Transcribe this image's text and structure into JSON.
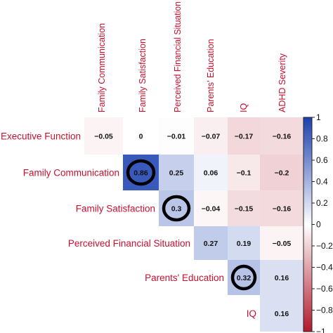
{
  "chart_data": {
    "type": "heatmap",
    "title": "",
    "columns": [
      "Family Communication",
      "Family Satisfaction",
      "Perceived Financial Situation",
      "Parents' Education",
      "IQ",
      "ADHD Severity"
    ],
    "rows": [
      "Executive Function",
      "Family Communication",
      "Family Satisfaction",
      "Perceived Financial Situation",
      "Parents' Education",
      "IQ"
    ],
    "layout": "upper-triangle",
    "cells": [
      {
        "row": 0,
        "col": 0,
        "value": -0.05,
        "label": "−0.05"
      },
      {
        "row": 0,
        "col": 1,
        "value": 0,
        "label": "0"
      },
      {
        "row": 0,
        "col": 2,
        "value": -0.01,
        "label": "−0.01"
      },
      {
        "row": 0,
        "col": 3,
        "value": -0.07,
        "label": "−0.07"
      },
      {
        "row": 0,
        "col": 4,
        "value": -0.17,
        "label": "−0.17"
      },
      {
        "row": 0,
        "col": 5,
        "value": -0.16,
        "label": "−0.16"
      },
      {
        "row": 1,
        "col": 1,
        "value": 0.86,
        "label": "0.86",
        "circled": true
      },
      {
        "row": 1,
        "col": 2,
        "value": 0.25,
        "label": "0.25"
      },
      {
        "row": 1,
        "col": 3,
        "value": 0.06,
        "label": "0.06"
      },
      {
        "row": 1,
        "col": 4,
        "value": -0.1,
        "label": "−0.1"
      },
      {
        "row": 1,
        "col": 5,
        "value": -0.2,
        "label": "−0.2"
      },
      {
        "row": 2,
        "col": 2,
        "value": 0.3,
        "label": "0.3",
        "circled": true
      },
      {
        "row": 2,
        "col": 3,
        "value": -0.04,
        "label": "−0.04"
      },
      {
        "row": 2,
        "col": 4,
        "value": -0.15,
        "label": "−0.15"
      },
      {
        "row": 2,
        "col": 5,
        "value": -0.16,
        "label": "−0.16"
      },
      {
        "row": 3,
        "col": 3,
        "value": 0.27,
        "label": "0.27"
      },
      {
        "row": 3,
        "col": 4,
        "value": 0.19,
        "label": "0.19"
      },
      {
        "row": 3,
        "col": 5,
        "value": -0.05,
        "label": "−0.05"
      },
      {
        "row": 4,
        "col": 4,
        "value": 0.32,
        "label": "0.32",
        "circled": true
      },
      {
        "row": 4,
        "col": 5,
        "value": 0.16,
        "label": "0.16"
      },
      {
        "row": 5,
        "col": 5,
        "value": 0.16,
        "label": "0.16"
      }
    ],
    "colorscale": {
      "range": [
        -1,
        1
      ],
      "negative_color": "#b2182b",
      "zero_color": "#ffffff",
      "positive_color": "#1a3fb0",
      "ticks": [
        1,
        0.8,
        0.6,
        0.4,
        0.2,
        0,
        -0.2,
        -0.4,
        -0.6,
        -0.8,
        -1
      ],
      "tick_labels": [
        "1",
        "0.8",
        "0.6",
        "0.4",
        "0.2",
        "0",
        "−0.2",
        "−0.4",
        "−0.6",
        "−0.8",
        "−1"
      ],
      "legend": "right"
    },
    "label_color": "#c8102e",
    "annotation_color": "#000000"
  }
}
